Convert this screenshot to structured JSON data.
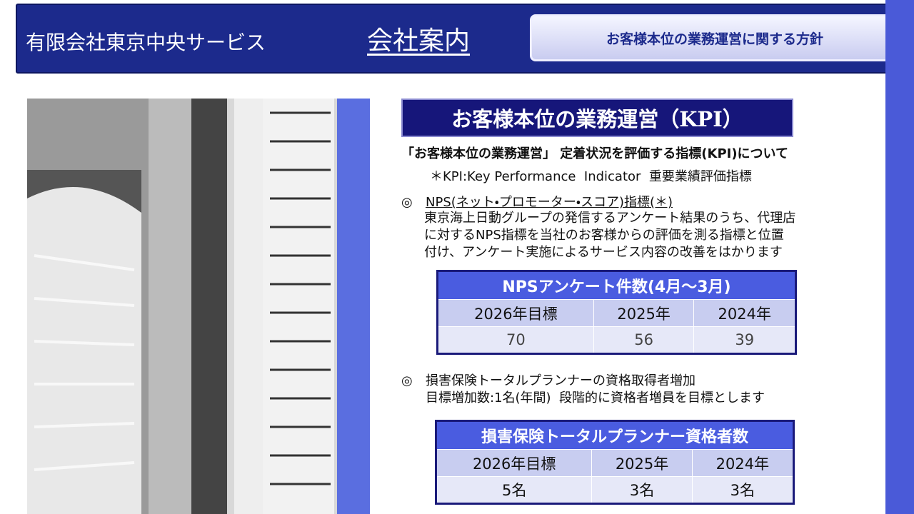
{
  "header": {
    "company": "有限会社東京中央サービス",
    "title": "会社案内",
    "policy_button": "お客様本位の業務運営に関する方針"
  },
  "section": {
    "title": "お客様本位の業務運営（KPI）",
    "intro": "「お客様本位の業務運営」 定着状況を評価する指標(KPI)について",
    "note": "＊KPI:Key Performance  Indicator  重要業績評価指標"
  },
  "bullet": "◎",
  "items": [
    {
      "heading": "NPS(ネット・プロモーター・スコア)指標(＊)",
      "body": [
        "東京海上日動グループの発信するアンケート結果のうち、代理店",
        "に対するNPS指標を当社のお客様からの評価を測る指標と位置",
        "付け、アンケート実施によるサービス内容の改善をはかります"
      ],
      "table": {
        "title": "NPSアンケート件数(4月～3月)",
        "header": [
          "2026年目標",
          "2025年",
          "2024年"
        ],
        "rows": [
          [
            "70",
            "56",
            "39"
          ]
        ]
      }
    },
    {
      "heading": "損害保険トータルプランナーの資格取得者増加",
      "body": [
        "目標増加数:1名(年間)  段階的に資格者増員を目標とします"
      ],
      "table": {
        "title": "損害保険トータルプランナー資格者数",
        "header": [
          "2026年目標",
          "2025年",
          "2024年"
        ],
        "rows": [
          [
            "5名",
            "3名",
            "3名"
          ]
        ]
      }
    }
  ]
}
